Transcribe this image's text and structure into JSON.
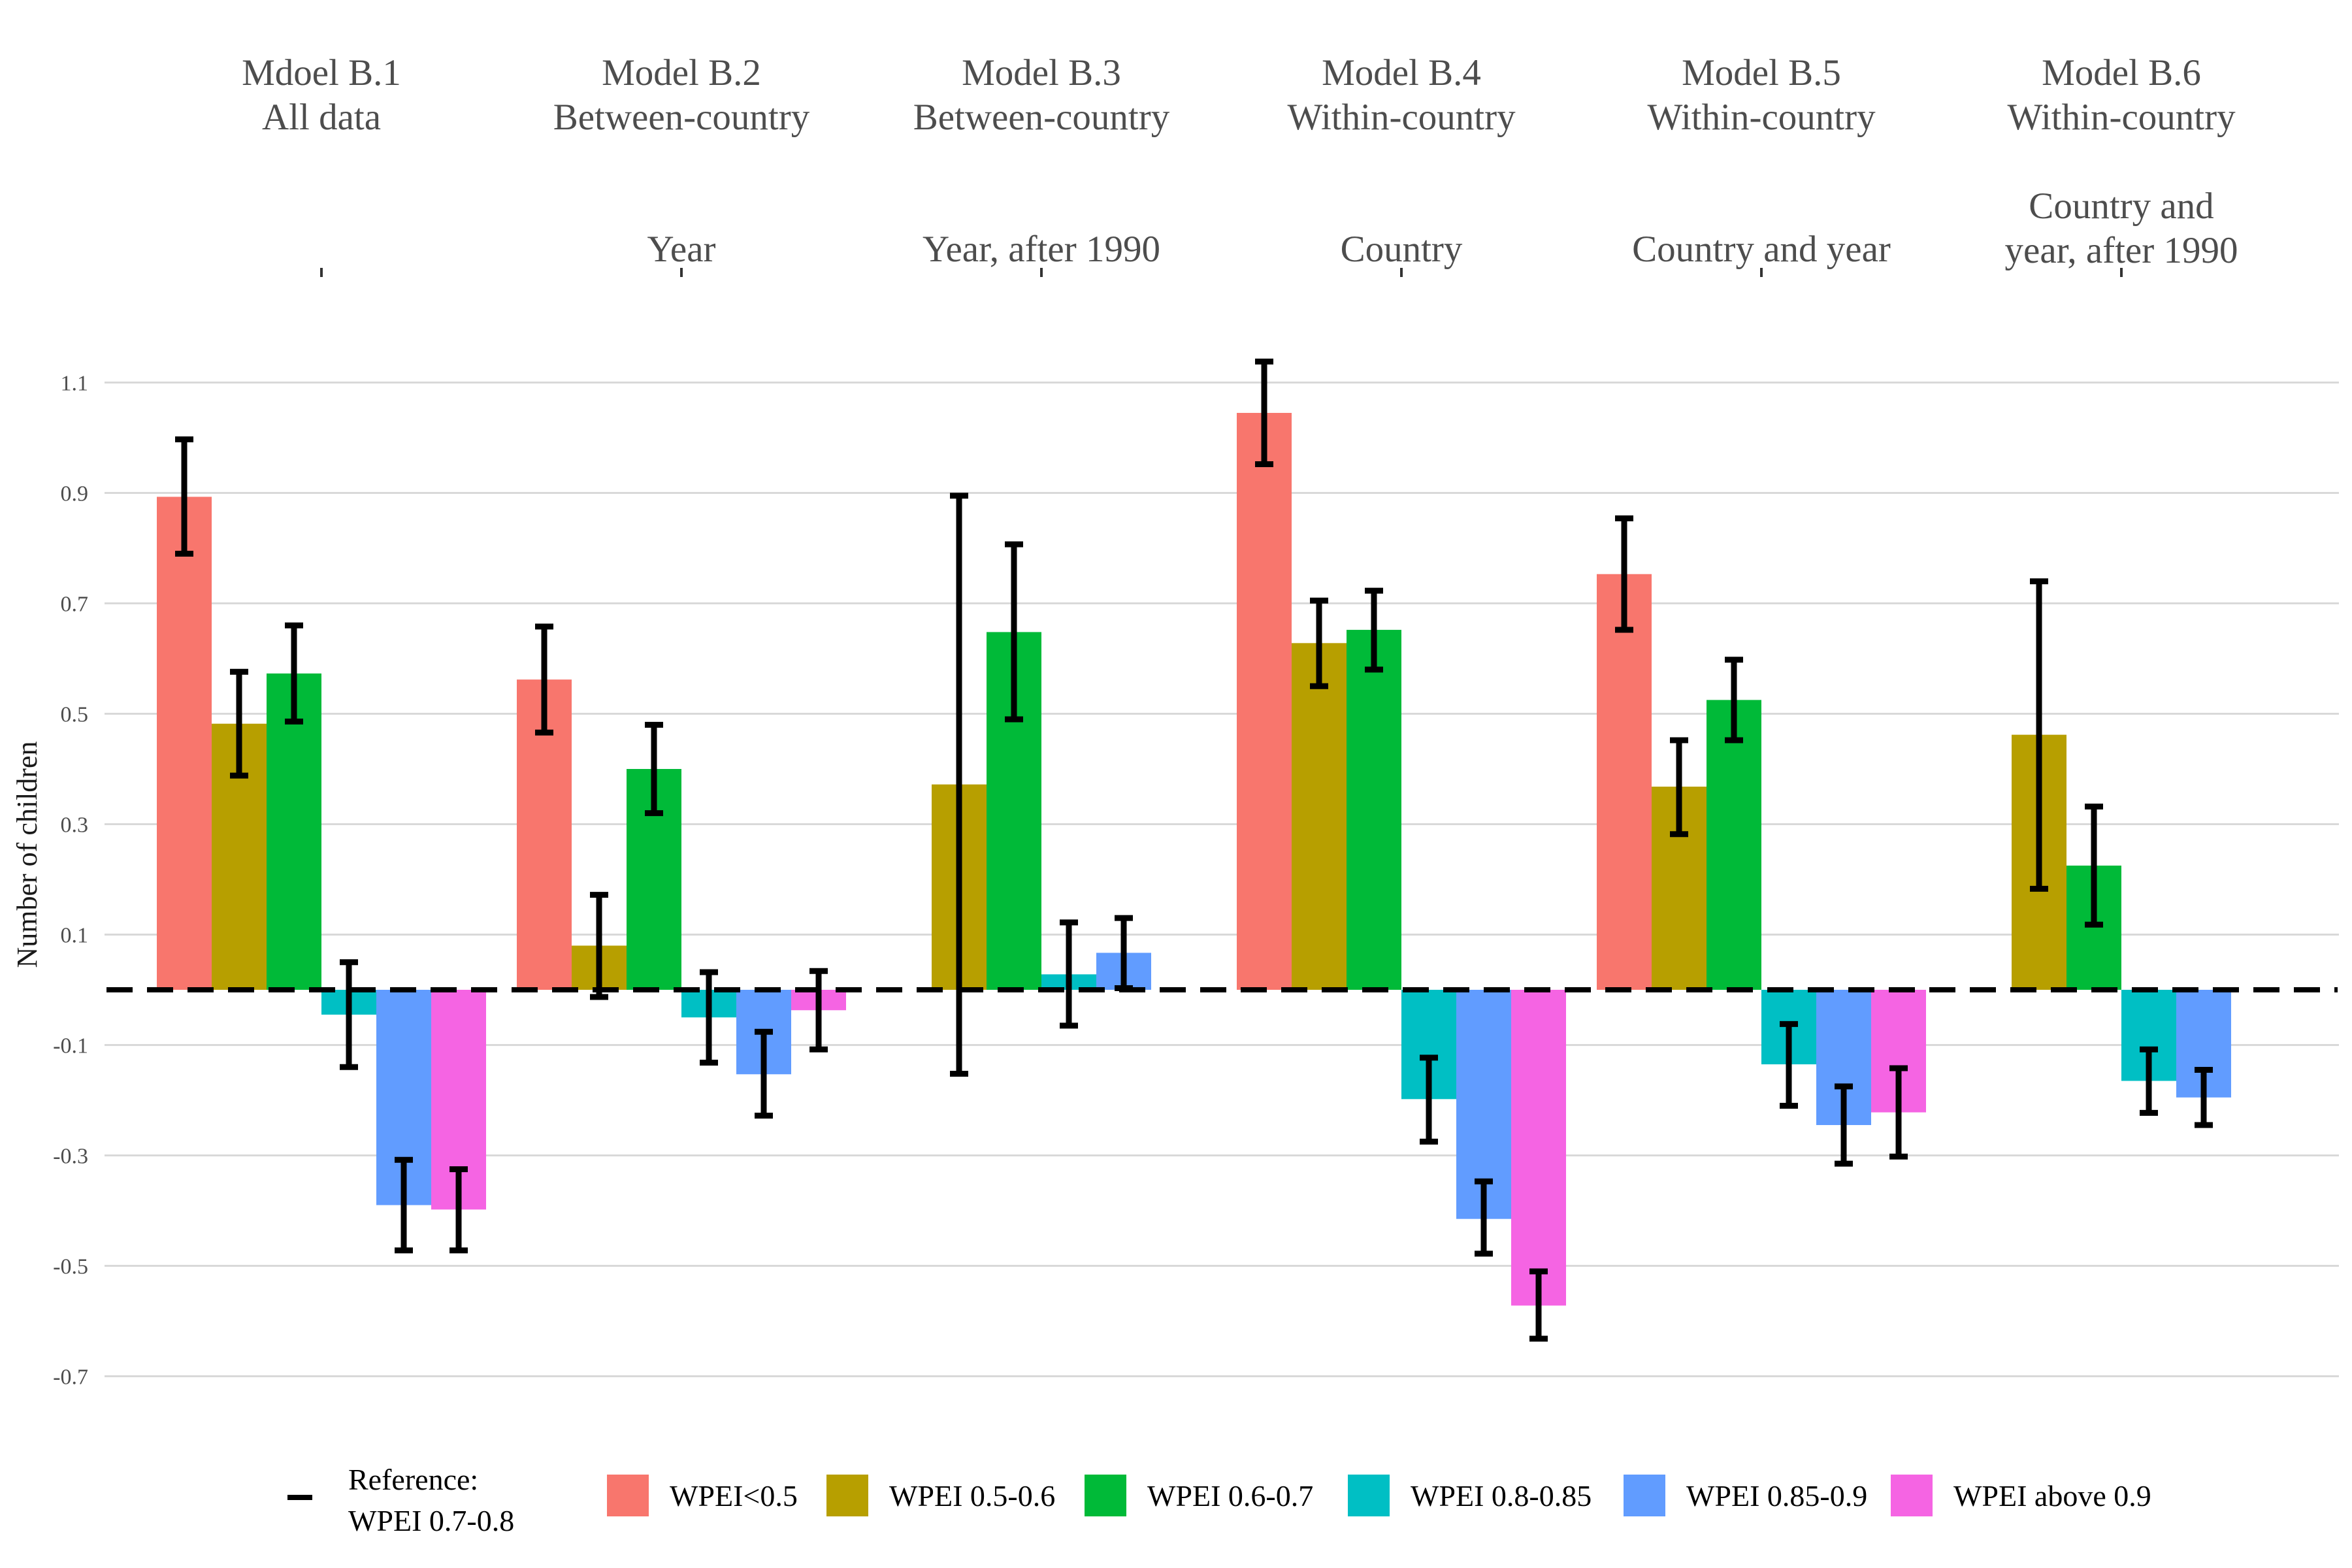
{
  "chart_data": {
    "type": "bar",
    "ylabel": "Number of children",
    "ylim": [
      -0.76,
      1.18
    ],
    "yticks": [
      1.1,
      0.9,
      0.7,
      0.5,
      0.3,
      0.1,
      -0.1,
      -0.3,
      -0.5,
      -0.7
    ],
    "ytick_labels": [
      "1.1",
      "0.9",
      "0.7",
      "0.5",
      "0.3",
      "0.1",
      "-0.1",
      "-0.3",
      "-0.5",
      "-0.7"
    ],
    "grid": true,
    "reference": {
      "value": 0,
      "label": "Reference:",
      "label2": "WPEI 0.7-0.8"
    },
    "legend_position": "bottom",
    "series": [
      {
        "name": "WPEI<0.5",
        "color": "#F8766D"
      },
      {
        "name": "WPEI 0.5-0.6",
        "color": "#B79F00"
      },
      {
        "name": "WPEI 0.6-0.7",
        "color": "#00BA38"
      },
      {
        "name": "WPEI 0.8-0.85",
        "color": "#00BFC4"
      },
      {
        "name": "WPEI 0.85-0.9",
        "color": "#619CFF"
      },
      {
        "name": "WPEI above 0.9",
        "color": "#F564E3"
      }
    ],
    "panels": [
      {
        "title": [
          "Mdoel B.1",
          "All data"
        ],
        "subtitle": [],
        "values": [
          0.893,
          0.482,
          0.573,
          -0.045,
          -0.39,
          -0.398
        ],
        "lower": [
          0.79,
          0.388,
          0.486,
          -0.14,
          -0.472,
          -0.472
        ],
        "upper": [
          0.997,
          0.576,
          0.66,
          0.05,
          -0.308,
          -0.325
        ]
      },
      {
        "title": [
          "Model B.2",
          "Between-country"
        ],
        "subtitle": [
          "Year"
        ],
        "values": [
          0.562,
          0.08,
          0.4,
          -0.05,
          -0.153,
          -0.037
        ],
        "lower": [
          0.466,
          -0.013,
          0.32,
          -0.132,
          -0.228,
          -0.108
        ],
        "upper": [
          0.658,
          0.172,
          0.48,
          0.032,
          -0.076,
          0.034
        ]
      },
      {
        "title": [
          "Model B.3",
          "Between-country"
        ],
        "subtitle": [
          "Year, after 1990"
        ],
        "values": [
          null,
          0.372,
          0.648,
          0.028,
          0.067,
          null
        ],
        "lower": [
          null,
          -0.152,
          0.49,
          -0.065,
          0.003,
          null
        ],
        "upper": [
          null,
          0.895,
          0.807,
          0.122,
          0.13,
          null
        ]
      },
      {
        "title": [
          "Model B.4",
          "Within-country"
        ],
        "subtitle": [
          "Country"
        ],
        "values": [
          1.045,
          0.628,
          0.652,
          -0.198,
          -0.415,
          -0.572
        ],
        "lower": [
          0.952,
          0.55,
          0.58,
          -0.275,
          -0.478,
          -0.632
        ],
        "upper": [
          1.138,
          0.705,
          0.723,
          -0.123,
          -0.347,
          -0.51
        ]
      },
      {
        "title": [
          "Model B.5",
          "Within-country"
        ],
        "subtitle": [
          "Country and year"
        ],
        "values": [
          0.753,
          0.368,
          0.525,
          -0.135,
          -0.245,
          -0.222
        ],
        "lower": [
          0.652,
          0.282,
          0.452,
          -0.21,
          -0.315,
          -0.302
        ],
        "upper": [
          0.854,
          0.452,
          0.598,
          -0.062,
          -0.175,
          -0.142
        ]
      },
      {
        "title": [
          "Model B.6",
          "Within-country"
        ],
        "subtitle": [
          "Country and",
          "year, after 1990"
        ],
        "values": [
          null,
          0.462,
          0.225,
          -0.165,
          -0.195,
          null
        ],
        "lower": [
          null,
          0.183,
          0.118,
          -0.223,
          -0.245,
          null
        ],
        "upper": [
          null,
          0.74,
          0.332,
          -0.108,
          -0.145,
          null
        ]
      }
    ]
  }
}
